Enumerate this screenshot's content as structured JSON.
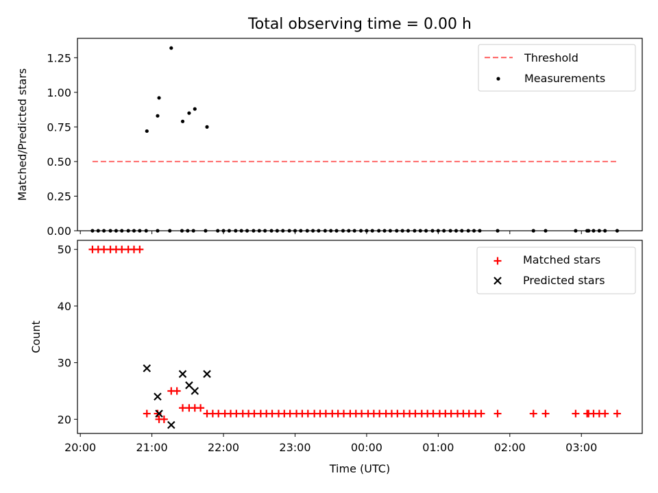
{
  "figure": {
    "title": "Total observing time = 0.00 h"
  },
  "chart_data": [
    {
      "type": "scatter",
      "panel": "top",
      "ylabel": "Matched/Predicted stars",
      "ylim": [
        0,
        1.39
      ],
      "yticks": [
        0.0,
        0.25,
        0.5,
        0.75,
        1.0,
        1.25
      ],
      "ytick_labels": [
        "0.00",
        "0.25",
        "0.50",
        "0.75",
        "1.00",
        "1.25"
      ],
      "xlim_hours": [
        19.96,
        27.85
      ],
      "legend_position": "upper right",
      "threshold": {
        "name": "Threshold",
        "value": 0.5,
        "x_range_hours": [
          20.17,
          27.5
        ],
        "color": "#ff7070",
        "style": "dashed"
      },
      "series": [
        {
          "name": "Measurements",
          "color": "#000000",
          "marker": "dot",
          "x_hours": [
            20.17,
            20.25,
            20.33,
            20.42,
            20.5,
            20.58,
            20.67,
            20.75,
            20.83,
            20.92,
            21.08,
            21.25,
            21.42,
            21.5,
            21.58,
            21.75,
            21.92,
            22.0,
            22.08,
            22.17,
            22.25,
            22.33,
            22.42,
            22.5,
            22.58,
            22.67,
            22.75,
            22.83,
            22.92,
            23.0,
            23.08,
            23.17,
            23.25,
            23.33,
            23.42,
            23.5,
            23.58,
            23.67,
            23.75,
            23.83,
            23.92,
            24.0,
            24.08,
            24.17,
            24.25,
            24.33,
            24.42,
            24.5,
            24.58,
            24.67,
            24.75,
            24.83,
            24.92,
            25.0,
            25.08,
            25.17,
            25.25,
            25.33,
            25.42,
            25.5,
            25.58,
            25.83,
            26.33,
            26.5,
            26.92,
            27.08,
            27.1,
            27.17,
            27.25,
            27.33,
            27.5,
            20.93,
            21.08,
            21.1,
            21.27,
            21.43,
            21.52,
            21.6,
            21.77
          ],
          "y": [
            0,
            0,
            0,
            0,
            0,
            0,
            0,
            0,
            0,
            0,
            0,
            0,
            0,
            0,
            0,
            0,
            0,
            0,
            0,
            0,
            0,
            0,
            0,
            0,
            0,
            0,
            0,
            0,
            0,
            0,
            0,
            0,
            0,
            0,
            0,
            0,
            0,
            0,
            0,
            0,
            0,
            0,
            0,
            0,
            0,
            0,
            0,
            0,
            0,
            0,
            0,
            0,
            0,
            0,
            0,
            0,
            0,
            0,
            0,
            0,
            0,
            0,
            0,
            0,
            0,
            0,
            0,
            0,
            0,
            0,
            0,
            0.72,
            0.83,
            0.96,
            1.32,
            0.79,
            0.85,
            0.88,
            0.75
          ]
        }
      ]
    },
    {
      "type": "scatter",
      "panel": "bottom",
      "xlabel": "Time (UTC)",
      "ylabel": "Count",
      "ylim": [
        17.5,
        51.6
      ],
      "yticks": [
        20,
        30,
        40,
        50
      ],
      "ytick_labels": [
        "20",
        "30",
        "40",
        "50"
      ],
      "xlim_hours": [
        19.96,
        27.85
      ],
      "xticks_hours": [
        20,
        21,
        22,
        23,
        24,
        25,
        26,
        27
      ],
      "xtick_labels": [
        "20:00",
        "21:00",
        "22:00",
        "23:00",
        "00:00",
        "01:00",
        "02:00",
        "03:00"
      ],
      "legend_position": "upper right",
      "series": [
        {
          "name": "Matched stars",
          "color": "#ff0000",
          "marker": "plus",
          "x_hours": [
            20.17,
            20.25,
            20.33,
            20.42,
            20.5,
            20.58,
            20.67,
            20.75,
            20.83,
            20.93,
            21.08,
            21.1,
            21.17,
            21.27,
            21.35,
            21.43,
            21.52,
            21.6,
            21.68,
            21.77,
            21.85,
            21.93,
            22.02,
            22.1,
            22.18,
            22.27,
            22.35,
            22.43,
            22.52,
            22.6,
            22.68,
            22.77,
            22.85,
            22.93,
            23.02,
            23.1,
            23.18,
            23.27,
            23.35,
            23.43,
            23.52,
            23.6,
            23.68,
            23.77,
            23.85,
            23.93,
            24.02,
            24.1,
            24.18,
            24.27,
            24.35,
            24.43,
            24.52,
            24.6,
            24.68,
            24.77,
            24.85,
            24.93,
            25.02,
            25.1,
            25.18,
            25.27,
            25.35,
            25.43,
            25.52,
            25.6,
            25.83,
            26.33,
            26.5,
            26.92,
            27.08,
            27.1,
            27.17,
            27.25,
            27.33,
            27.5
          ],
          "y": [
            50,
            50,
            50,
            50,
            50,
            50,
            50,
            50,
            50,
            21,
            21,
            20,
            20,
            25,
            25,
            22,
            22,
            22,
            22,
            21,
            21,
            21,
            21,
            21,
            21,
            21,
            21,
            21,
            21,
            21,
            21,
            21,
            21,
            21,
            21,
            21,
            21,
            21,
            21,
            21,
            21,
            21,
            21,
            21,
            21,
            21,
            21,
            21,
            21,
            21,
            21,
            21,
            21,
            21,
            21,
            21,
            21,
            21,
            21,
            21,
            21,
            21,
            21,
            21,
            21,
            21,
            21,
            21,
            21,
            21,
            21,
            21,
            21,
            21,
            21,
            21
          ]
        },
        {
          "name": "Predicted stars",
          "color": "#000000",
          "marker": "x",
          "x_hours": [
            20.93,
            21.08,
            21.1,
            21.27,
            21.43,
            21.52,
            21.6,
            21.77
          ],
          "y": [
            29,
            24,
            21,
            19,
            28,
            26,
            25,
            28
          ]
        }
      ]
    }
  ]
}
